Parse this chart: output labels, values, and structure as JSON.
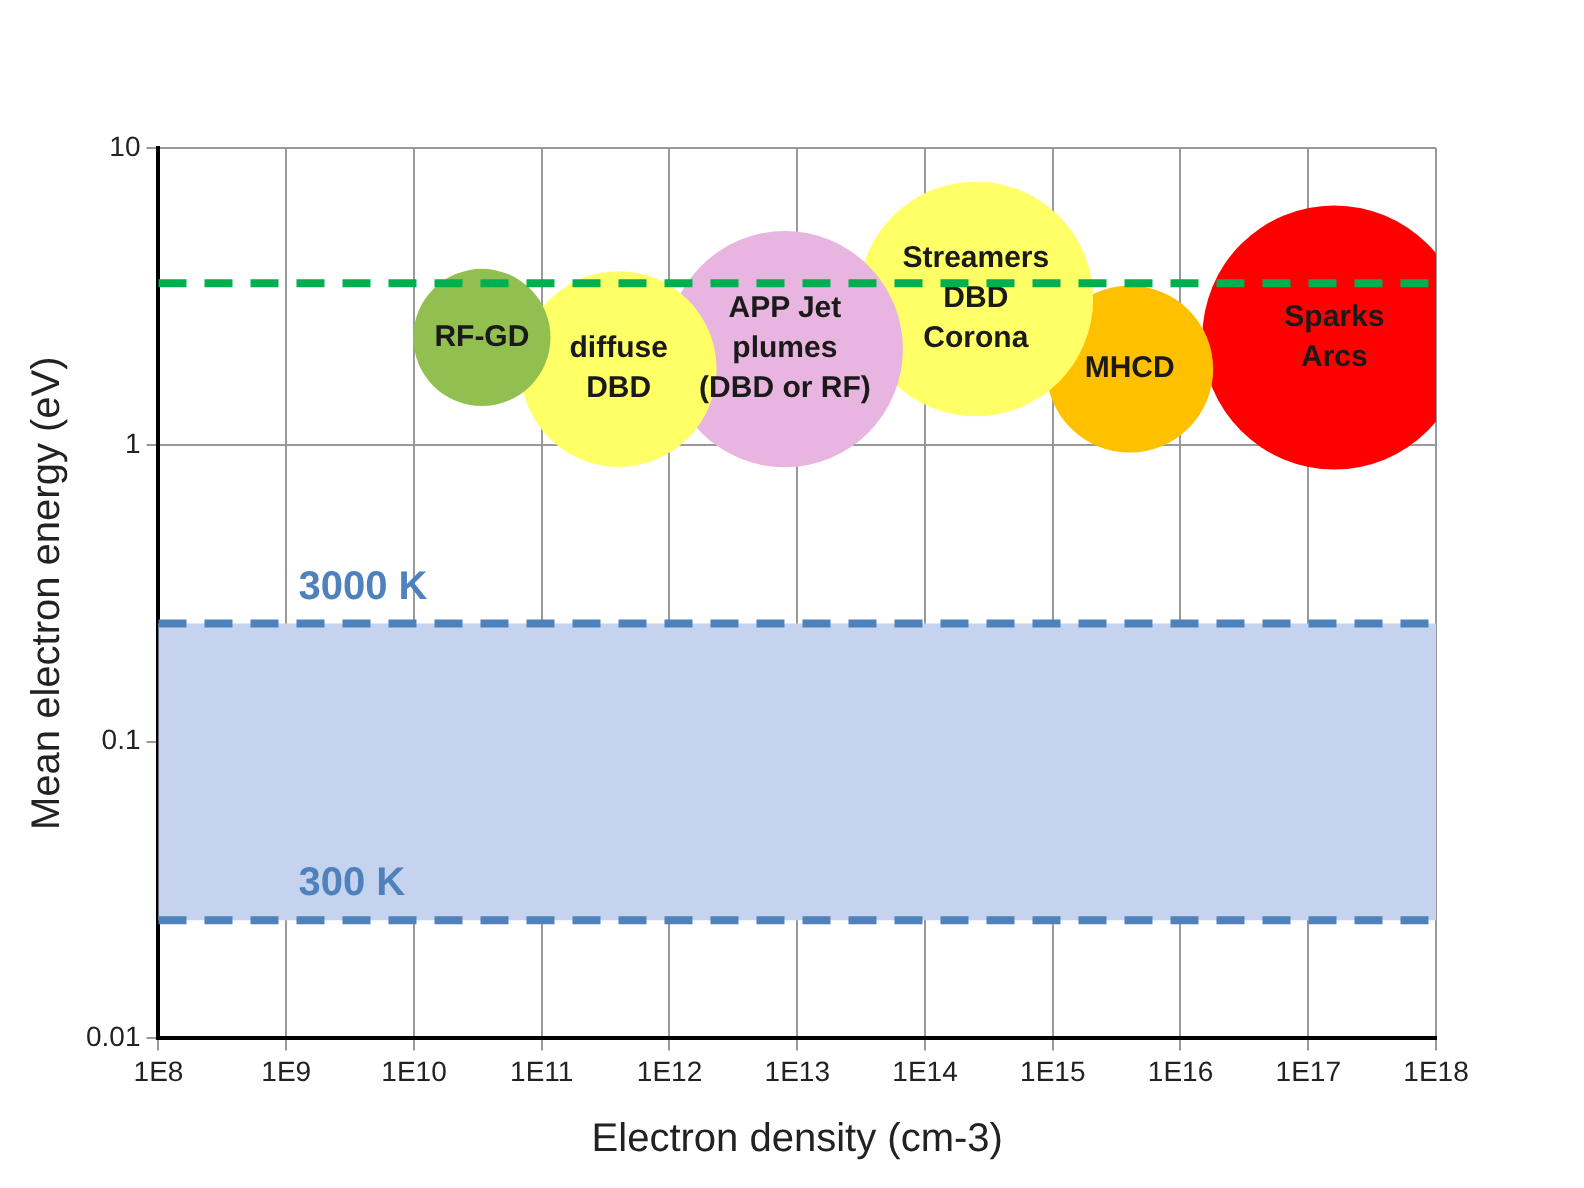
{
  "chart_data": {
    "type": "bubble",
    "xlabel": "Electron density (cm-3)",
    "ylabel": "Mean electron energy (eV)",
    "log": "xy",
    "grid": true,
    "legend": false,
    "xlim": [
      100000000.0,
      1e+18
    ],
    "ylim": [
      0.01,
      10
    ],
    "xticks": [
      {
        "value": 100000000.0,
        "label": "1E8"
      },
      {
        "value": 1000000000.0,
        "label": "1E9"
      },
      {
        "value": 10000000000.0,
        "label": "1E10"
      },
      {
        "value": 100000000000.0,
        "label": "1E11"
      },
      {
        "value": 1000000000000.0,
        "label": "1E12"
      },
      {
        "value": 10000000000000.0,
        "label": "1E13"
      },
      {
        "value": 100000000000000.0,
        "label": "1E14"
      },
      {
        "value": 1000000000000000.0,
        "label": "1E15"
      },
      {
        "value": 1e+16,
        "label": "1E16"
      },
      {
        "value": 1e+17,
        "label": "1E17"
      },
      {
        "value": 1e+18,
        "label": "1E18"
      }
    ],
    "yticks": [
      0.01,
      0.1,
      1,
      10
    ],
    "series": [
      {
        "name": "RF-GD",
        "color": "#92c050",
        "x": [
          34000000000.0
        ],
        "values": [
          2.3
        ],
        "sizes": [
          0.27
        ]
      },
      {
        "name": "diffuse\nDBD",
        "color": "#ffff66",
        "x": [
          400000000000.0
        ],
        "values": [
          1.8
        ],
        "sizes": [
          0.55
        ]
      },
      {
        "name": "APP Jet\nplumes\n(DBD or RF)",
        "color": "#e8b4e0",
        "x": [
          8000000000000.0
        ],
        "values": [
          2.1
        ],
        "sizes": [
          0.8
        ]
      },
      {
        "name": "Streamers\nDBD\nCorona",
        "color": "#ffff66",
        "x": [
          250000000000000.0
        ],
        "values": [
          3.1
        ],
        "sizes": [
          0.79
        ]
      },
      {
        "name": "MHCD",
        "color": "#ffc000",
        "x": [
          4000000000000000.0
        ],
        "values": [
          1.8
        ],
        "sizes": [
          0.4
        ]
      },
      {
        "name": "Sparks\nArcs",
        "color": "#ff0000",
        "x": [
          1.6e+17
        ],
        "values": [
          2.3
        ],
        "sizes": [
          1
        ]
      }
    ],
    "bands": [
      {
        "axis": "y",
        "from": 0.025,
        "to": 0.25,
        "color": "#c5d3ee"
      }
    ],
    "ref_lines": [
      {
        "axis": "y",
        "value": 3.5,
        "color": "#00b050",
        "line_style": "dashed"
      },
      {
        "axis": "y",
        "value": 0.25,
        "label": "3000 K",
        "color": "#4f81bd",
        "line_style": "dashed"
      },
      {
        "axis": "y",
        "value": 0.025,
        "label": "300 K",
        "color": "#4f81bd",
        "line_style": "dashed"
      }
    ]
  }
}
